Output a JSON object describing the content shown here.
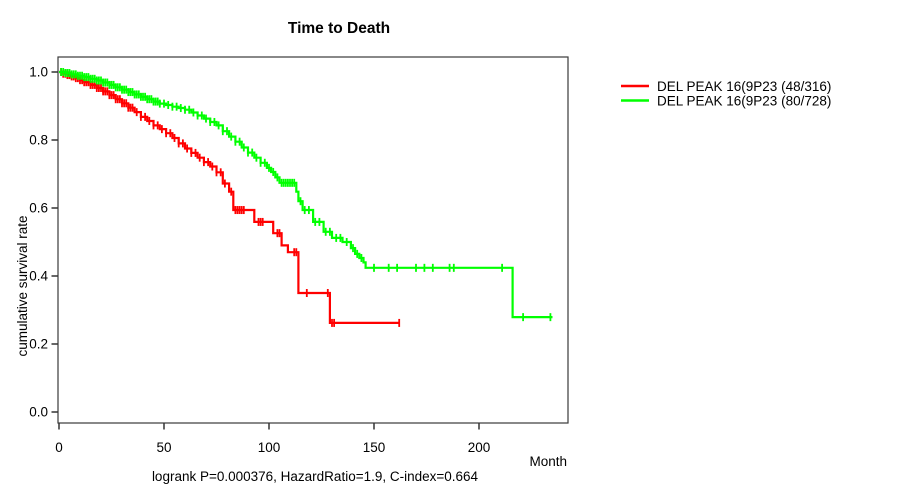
{
  "figure": {
    "title": "Time to Death",
    "annotation": "logrank P=0.000376, HazardRatio=1.9, C-index=0.664"
  },
  "chart_data": {
    "type": "line",
    "subtype": "kaplan-meier-step",
    "title": "Time to Death",
    "xlabel": "Month",
    "ylabel": "cumulative survival rate",
    "xlim": [
      0,
      242
    ],
    "ylim": [
      0.0,
      1.0
    ],
    "xticks": [
      0,
      50,
      100,
      150,
      200
    ],
    "yticks": [
      0.0,
      0.2,
      0.4,
      0.6,
      0.8,
      1.0
    ],
    "grid": false,
    "legend_position": "right-outside",
    "annotation": "logrank P=0.000376, HazardRatio=1.9, C-index=0.664",
    "legend": [
      {
        "label": "DEL PEAK 16(9P23 (48/316)",
        "color": "#ff0000"
      },
      {
        "label": "DEL PEAK 16(9P23 (80/728)",
        "color": "#00ff00"
      }
    ],
    "series": [
      {
        "name": "DEL PEAK 16(9P23 (48/316)",
        "color": "#ff0000",
        "steps": [
          [
            0,
            1.0
          ],
          [
            2,
            0.995
          ],
          [
            4,
            0.991
          ],
          [
            6,
            0.987
          ],
          [
            8,
            0.982
          ],
          [
            10,
            0.976
          ],
          [
            12,
            0.97
          ],
          [
            15,
            0.962
          ],
          [
            18,
            0.953
          ],
          [
            21,
            0.943
          ],
          [
            24,
            0.932
          ],
          [
            27,
            0.92
          ],
          [
            30,
            0.908
          ],
          [
            33,
            0.895
          ],
          [
            36,
            0.882
          ],
          [
            39,
            0.868
          ],
          [
            42,
            0.856
          ],
          [
            45,
            0.843
          ],
          [
            48,
            0.832
          ],
          [
            51,
            0.82
          ],
          [
            54,
            0.806
          ],
          [
            57,
            0.79
          ],
          [
            60,
            0.775
          ],
          [
            63,
            0.762
          ],
          [
            66,
            0.748
          ],
          [
            69,
            0.735
          ],
          [
            72,
            0.722
          ],
          [
            75,
            0.705
          ],
          [
            78,
            0.672
          ],
          [
            81,
            0.648
          ],
          [
            83,
            0.594
          ],
          [
            93,
            0.559
          ],
          [
            102,
            0.526
          ],
          [
            106,
            0.49
          ],
          [
            109,
            0.47
          ],
          [
            114,
            0.35
          ],
          [
            129,
            0.262
          ],
          [
            162,
            0.262
          ]
        ],
        "censor_months": [
          1,
          2,
          3,
          4,
          5,
          6,
          7,
          8,
          9,
          10,
          11,
          12,
          13,
          14,
          15,
          16,
          17,
          18,
          19,
          20,
          21,
          22,
          23,
          24,
          25,
          26,
          27,
          28,
          29,
          30,
          31,
          32,
          33,
          34,
          35,
          37,
          39,
          41,
          43,
          45,
          47,
          49,
          51,
          53,
          55,
          57,
          59,
          61,
          63,
          65,
          67,
          69,
          71,
          73,
          75,
          77,
          79,
          82,
          84,
          85,
          86,
          87,
          88,
          95,
          96,
          97,
          104,
          105,
          112,
          113,
          118,
          128,
          130,
          131,
          162
        ]
      },
      {
        "name": "DEL PEAK 16(9P23 (80/728)",
        "color": "#00ff00",
        "steps": [
          [
            0,
            1.0
          ],
          [
            3,
            0.997
          ],
          [
            6,
            0.993
          ],
          [
            9,
            0.989
          ],
          [
            12,
            0.985
          ],
          [
            15,
            0.98
          ],
          [
            18,
            0.975
          ],
          [
            21,
            0.969
          ],
          [
            24,
            0.962
          ],
          [
            27,
            0.955
          ],
          [
            30,
            0.948
          ],
          [
            33,
            0.941
          ],
          [
            36,
            0.934
          ],
          [
            39,
            0.927
          ],
          [
            42,
            0.92
          ],
          [
            45,
            0.913
          ],
          [
            48,
            0.907
          ],
          [
            51,
            0.903
          ],
          [
            54,
            0.898
          ],
          [
            57,
            0.894
          ],
          [
            60,
            0.889
          ],
          [
            63,
            0.881
          ],
          [
            66,
            0.872
          ],
          [
            69,
            0.863
          ],
          [
            72,
            0.853
          ],
          [
            75,
            0.843
          ],
          [
            78,
            0.826
          ],
          [
            81,
            0.81
          ],
          [
            84,
            0.795
          ],
          [
            87,
            0.778
          ],
          [
            90,
            0.763
          ],
          [
            93,
            0.748
          ],
          [
            96,
            0.733
          ],
          [
            99,
            0.718
          ],
          [
            101,
            0.706
          ],
          [
            103,
            0.69
          ],
          [
            105,
            0.674
          ],
          [
            113,
            0.648
          ],
          [
            114,
            0.62
          ],
          [
            116,
            0.594
          ],
          [
            121,
            0.559
          ],
          [
            126,
            0.53
          ],
          [
            130,
            0.512
          ],
          [
            135,
            0.5
          ],
          [
            139,
            0.482
          ],
          [
            141,
            0.465
          ],
          [
            143,
            0.453
          ],
          [
            145,
            0.44
          ],
          [
            146,
            0.424
          ],
          [
            216,
            0.279
          ],
          [
            235,
            0.279
          ]
        ],
        "censor_months": [
          1,
          2,
          3,
          4,
          5,
          6,
          7,
          8,
          9,
          10,
          11,
          12,
          13,
          14,
          15,
          16,
          17,
          18,
          19,
          20,
          21,
          22,
          23,
          24,
          25,
          26,
          27,
          28,
          29,
          30,
          31,
          32,
          33,
          34,
          35,
          36,
          37,
          38,
          39,
          40,
          41,
          42,
          43,
          44,
          45,
          46,
          47,
          48,
          50,
          52,
          54,
          56,
          58,
          60,
          62,
          64,
          66,
          68,
          70,
          72,
          74,
          76,
          78,
          80,
          82,
          84,
          86,
          88,
          90,
          92,
          94,
          96,
          98,
          100,
          102,
          104,
          106,
          107,
          108,
          109,
          110,
          111,
          112,
          115,
          117,
          119,
          122,
          124,
          127,
          129,
          132,
          134,
          137,
          140,
          142,
          144,
          150,
          157,
          161,
          170,
          174,
          178,
          186,
          188,
          211,
          221,
          234
        ]
      }
    ]
  },
  "colors": {
    "background": "#ffffff",
    "box": "#3a3a3a",
    "axis": "#000000",
    "series_red": "#ff0000",
    "series_green": "#00ff00"
  }
}
